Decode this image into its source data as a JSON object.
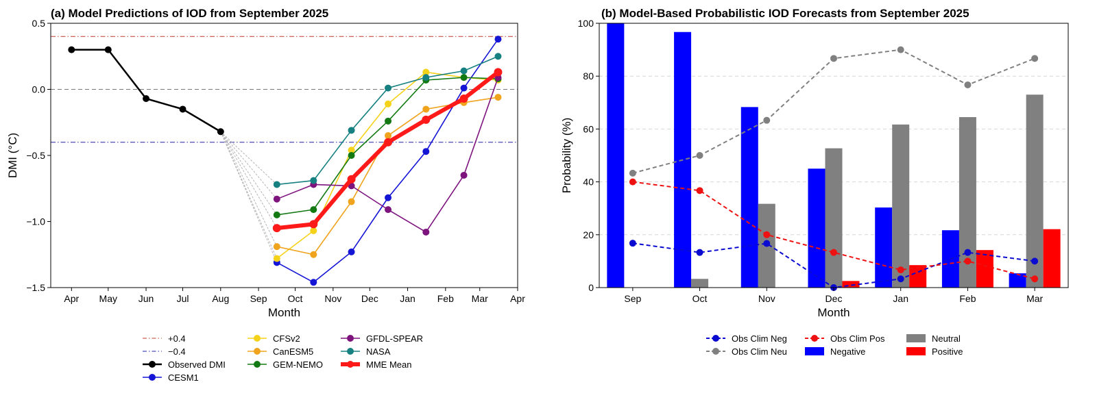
{
  "chart_data": [
    {
      "type": "line",
      "title": "(a) Model Predictions of IOD from September 2025",
      "xlabel": "Month",
      "ylabel": "DMI (°C)",
      "ylim": [
        -1.5,
        0.5
      ],
      "yticks": [
        -1.5,
        -1.0,
        -0.5,
        0.0,
        0.5
      ],
      "ytick_labels": [
        "−1.5",
        "−1.0",
        "−0.5",
        "0.0",
        "0.5"
      ],
      "xticks": [
        "2025-04",
        "2025-05",
        "2025-06",
        "2025-07",
        "2025-08",
        "2025-09",
        "2025-10",
        "2025-11",
        "2025-12",
        "2026-01",
        "2026-02",
        "2026-03",
        "2026-04"
      ],
      "xtick_labels": [
        "Apr",
        "May",
        "Jun",
        "Jul",
        "Aug",
        "Sep",
        "Oct",
        "Nov",
        "Dec",
        "Jan",
        "Feb",
        "Mar",
        "Apr"
      ],
      "xlim": [
        "2025-03-15",
        "2026-04-01"
      ],
      "grid": false,
      "legend_position": "below-center",
      "reference_lines": [
        {
          "name": "+0.4",
          "y": 0.4,
          "color": "#c0392b",
          "style": "dashdot"
        },
        {
          "name": "−0.4",
          "y": -0.4,
          "color": "#1f1fa8",
          "style": "dashdot"
        },
        {
          "y": 0.0,
          "color": "#777777",
          "style": "dashed"
        }
      ],
      "observed": {
        "name": "Observed DMI",
        "color": "#000000",
        "x": [
          "2025-04-01",
          "2025-05-01",
          "2025-06-01",
          "2025-07-01",
          "2025-08-01"
        ],
        "y": [
          0.3,
          0.3,
          -0.07,
          -0.15,
          -0.32
        ]
      },
      "forecast_x": [
        "2025-09-16",
        "2025-10-16",
        "2025-11-16",
        "2025-12-16",
        "2026-01-16",
        "2026-02-16",
        "2026-03-16"
      ],
      "series": [
        {
          "name": "CESM1",
          "color": "#1515d6",
          "values": [
            -1.31,
            -1.46,
            -1.23,
            -0.82,
            -0.47,
            0.01,
            0.38
          ]
        },
        {
          "name": "CFSv2",
          "color": "#f5d21a",
          "values": [
            -1.28,
            -1.07,
            -0.46,
            -0.11,
            0.13,
            0.09,
            0.07
          ]
        },
        {
          "name": "CanESM5",
          "color": "#f0a31c",
          "values": [
            -1.19,
            -1.25,
            -0.85,
            -0.35,
            -0.15,
            -0.1,
            -0.06
          ]
        },
        {
          "name": "GEM-NEMO",
          "color": "#137a13",
          "values": [
            -0.95,
            -0.91,
            -0.5,
            -0.24,
            0.07,
            0.09,
            0.08
          ]
        },
        {
          "name": "GFDL-SPEAR",
          "color": "#7d137d",
          "values": [
            -0.83,
            -0.72,
            -0.73,
            -0.91,
            -1.08,
            -0.65,
            0.09
          ]
        },
        {
          "name": "NASA",
          "color": "#178080",
          "values": [
            -0.72,
            -0.69,
            -0.31,
            0.01,
            0.09,
            0.14,
            0.25
          ]
        },
        {
          "name": "MME Mean",
          "color": "#ff1a1a",
          "values": [
            -1.05,
            -1.02,
            -0.68,
            -0.4,
            -0.23,
            -0.07,
            0.13
          ]
        }
      ]
    },
    {
      "type": "bar",
      "title": "(b) Model-Based Probabilistic IOD Forecasts from September 2025",
      "xlabel": "Month",
      "ylabel": "Probability (%)",
      "ylim": [
        0,
        100
      ],
      "yticks": [
        0,
        20,
        40,
        60,
        80,
        100
      ],
      "categories": [
        "Sep",
        "Oct",
        "Nov",
        "Dec",
        "Jan",
        "Feb",
        "Mar"
      ],
      "grid": "y-dashed",
      "legend_position": "below-center",
      "series": [
        {
          "name": "Negative",
          "color": "#0000ff",
          "values": [
            100,
            96.7,
            68.3,
            45.0,
            30.3,
            21.7,
            5.4
          ]
        },
        {
          "name": "Neutral",
          "color": "#808080",
          "values": [
            0,
            3.3,
            31.7,
            52.7,
            61.7,
            64.5,
            73.0
          ]
        },
        {
          "name": "Positive",
          "color": "#ff0000",
          "values": [
            0,
            0,
            0,
            2.5,
            8.5,
            14.2,
            22.1
          ]
        }
      ],
      "lines": [
        {
          "name": "Obs Clim Neg",
          "color": "#0a0ad0",
          "style": "dashed",
          "values": [
            16.8,
            13.3,
            16.7,
            0.0,
            3.3,
            13.3,
            10.0
          ]
        },
        {
          "name": "Obs Clim Neu",
          "color": "#808080",
          "style": "dashed",
          "values": [
            43.3,
            50.0,
            63.3,
            86.7,
            90.0,
            76.7,
            86.7
          ]
        },
        {
          "name": "Obs Clim Pos",
          "color": "#ee1111",
          "style": "dashed",
          "values": [
            40.0,
            36.7,
            20.0,
            13.3,
            6.7,
            10.0,
            3.3
          ]
        }
      ]
    }
  ]
}
